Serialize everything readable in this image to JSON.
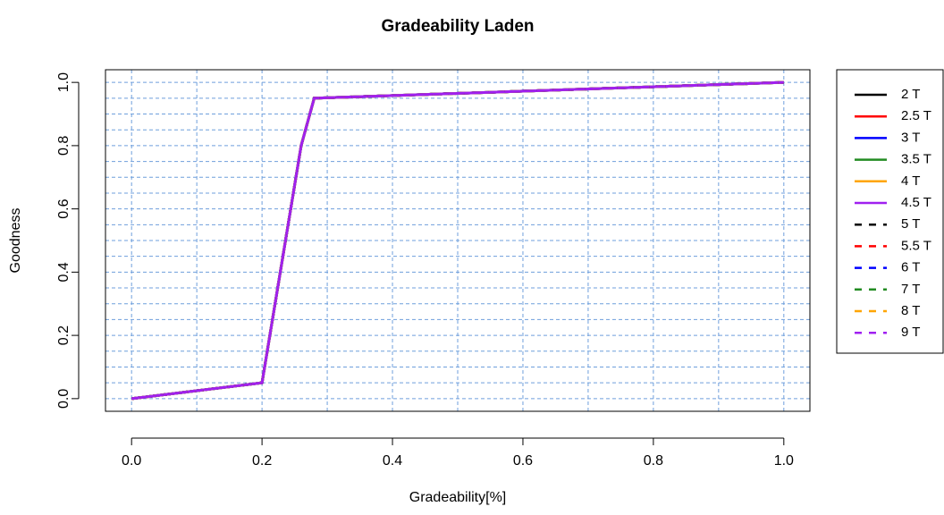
{
  "chart_data": {
    "type": "line",
    "title": "Gradeability Laden",
    "x_label": "Gradeability[%]",
    "y_label": "Goodness",
    "x": [
      0,
      0.2,
      0.26,
      0.28,
      1
    ],
    "series": [
      {
        "name": "2 T",
        "color": "#000000",
        "dash": "solid",
        "values": [
          0,
          0.05,
          0.8,
          0.95,
          1
        ]
      },
      {
        "name": "2.5 T",
        "color": "#ff0000",
        "dash": "solid",
        "values": [
          0,
          0.05,
          0.8,
          0.95,
          1
        ]
      },
      {
        "name": "3 T",
        "color": "#0000ff",
        "dash": "solid",
        "values": [
          0,
          0.05,
          0.8,
          0.95,
          1
        ]
      },
      {
        "name": "3.5 T",
        "color": "#228b22",
        "dash": "solid",
        "values": [
          0,
          0.05,
          0.8,
          0.95,
          1
        ]
      },
      {
        "name": "4 T",
        "color": "#ffa500",
        "dash": "solid",
        "values": [
          0,
          0.05,
          0.8,
          0.95,
          1
        ]
      },
      {
        "name": "4.5 T",
        "color": "#a020f0",
        "dash": "solid",
        "values": [
          0,
          0.05,
          0.8,
          0.95,
          1
        ]
      },
      {
        "name": "5 T",
        "color": "#000000",
        "dash": "dashed",
        "values": [
          0,
          0.05,
          0.8,
          0.95,
          1
        ]
      },
      {
        "name": "5.5 T",
        "color": "#ff0000",
        "dash": "dashed",
        "values": [
          0,
          0.05,
          0.8,
          0.95,
          1
        ]
      },
      {
        "name": "6 T",
        "color": "#0000ff",
        "dash": "dashed",
        "values": [
          0,
          0.05,
          0.8,
          0.95,
          1
        ]
      },
      {
        "name": "7 T",
        "color": "#228b22",
        "dash": "dashed",
        "values": [
          0,
          0.05,
          0.8,
          0.95,
          1
        ]
      },
      {
        "name": "8 T",
        "color": "#ffa500",
        "dash": "dashed",
        "values": [
          0,
          0.05,
          0.8,
          0.95,
          1
        ]
      },
      {
        "name": "9 T",
        "color": "#a020f0",
        "dash": "dashed",
        "values": [
          0,
          0.05,
          0.8,
          0.95,
          1
        ]
      }
    ],
    "xlim": [
      -0.04,
      1.04
    ],
    "ylim": [
      -0.04,
      1.04
    ],
    "xticks": [
      {
        "value": 0,
        "label": "0.0"
      },
      0.2,
      0.4,
      0.6,
      0.8,
      {
        "value": 1,
        "label": "1.0"
      }
    ],
    "yticks": [
      {
        "value": 0,
        "label": "0.0"
      },
      0.2,
      0.4,
      0.6,
      0.8,
      {
        "value": 1,
        "label": "1.0"
      }
    ],
    "xgrid": [
      0,
      0.1,
      0.2,
      0.3,
      0.4,
      0.5,
      0.6,
      0.7,
      0.8,
      0.9,
      1
    ],
    "ygrid": [
      0,
      0.05,
      0.1,
      0.15,
      0.2,
      0.25,
      0.3,
      0.35,
      0.4,
      0.45,
      0.5,
      0.55,
      0.6,
      0.65,
      0.7,
      0.75,
      0.8,
      0.85,
      0.9,
      0.95,
      1
    ],
    "grid_color": "#6f9fdc",
    "legend": "right"
  }
}
